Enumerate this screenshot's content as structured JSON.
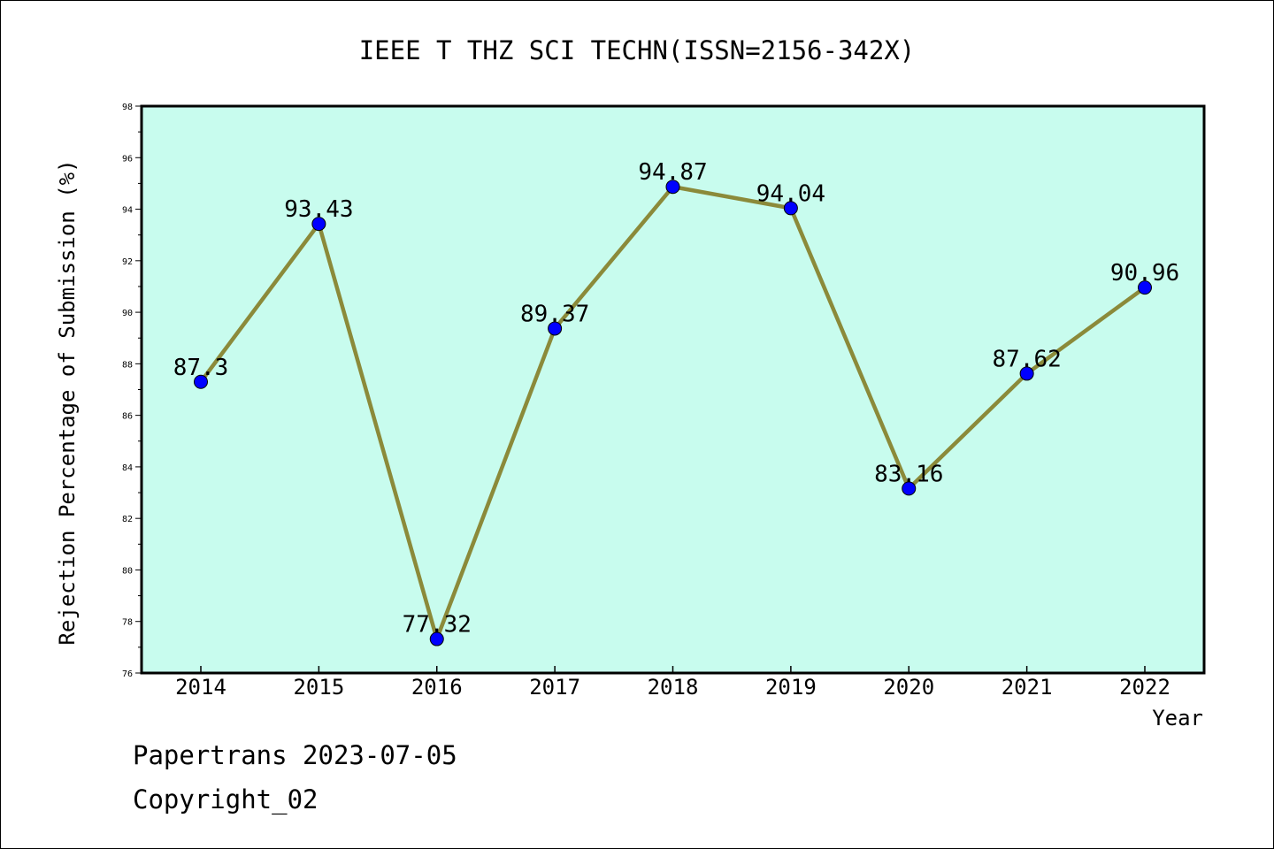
{
  "chart_data": {
    "type": "line",
    "title": "IEEE T THZ SCI TECHN(ISSN=2156-342X)",
    "xlabel": "Year",
    "ylabel": "Rejection Percentage of Submission (%)",
    "categories": [
      "2014",
      "2015",
      "2016",
      "2017",
      "2018",
      "2019",
      "2020",
      "2021",
      "2022"
    ],
    "series": [
      {
        "values": [
          87.3,
          93.43,
          77.32,
          89.37,
          94.87,
          94.04,
          83.16,
          87.62,
          90.96
        ],
        "labels": [
          "87.3",
          "93.43",
          "77.32",
          "89.37",
          "94.87",
          "94.04",
          "83.16",
          "87.62",
          "90.96"
        ]
      }
    ],
    "ylim": [
      76,
      98
    ],
    "yticks": [
      "76",
      "78",
      "80",
      "82",
      "84",
      "86",
      "88",
      "90",
      "92",
      "94",
      "96",
      "98"
    ],
    "grid": false,
    "legend": "none",
    "colors": {
      "plot_bg": "#c8fcee",
      "line": "#8b8a3a",
      "marker": "#0000ff"
    }
  },
  "footer": {
    "line1": "Papertrans 2023-07-05",
    "line2": "Copyright_02"
  }
}
